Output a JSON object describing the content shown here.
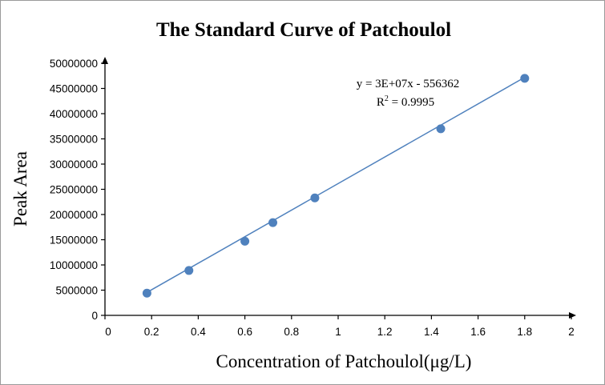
{
  "chart_data": {
    "type": "scatter",
    "title": "The Standard Curve of Patchoulol",
    "xlabel": "Concentration of Patchoulol(μg/L)",
    "ylabel": "Peak Area",
    "xlim": [
      0,
      2
    ],
    "ylim": [
      0,
      50000000
    ],
    "x_ticks": [
      "0",
      "0.2",
      "0.4",
      "0.6",
      "0.8",
      "1",
      "1.2",
      "1.4",
      "1.6",
      "1.8",
      "2"
    ],
    "y_ticks": [
      "0",
      "5000000",
      "10000000",
      "15000000",
      "20000000",
      "25000000",
      "30000000",
      "35000000",
      "40000000",
      "45000000",
      "50000000"
    ],
    "grid": false,
    "marker_color": "#4f81bd",
    "line_color": "#4f81bd",
    "series": [
      {
        "x": [
          0.18,
          0.36,
          0.6,
          0.72,
          0.9,
          1.44,
          1.8
        ],
        "y": [
          4400000,
          8900000,
          14700000,
          18400000,
          23300000,
          37000000,
          47000000
        ]
      }
    ],
    "trendline": {
      "x": [
        0.18,
        1.8
      ],
      "y": [
        4550000,
        47200000
      ]
    },
    "annotations": {
      "equation": "y = 3E+07x - 556362",
      "r_squared_prefix": "R",
      "r_squared_exp": "2",
      "r_squared_value": " = 0.9995"
    }
  }
}
